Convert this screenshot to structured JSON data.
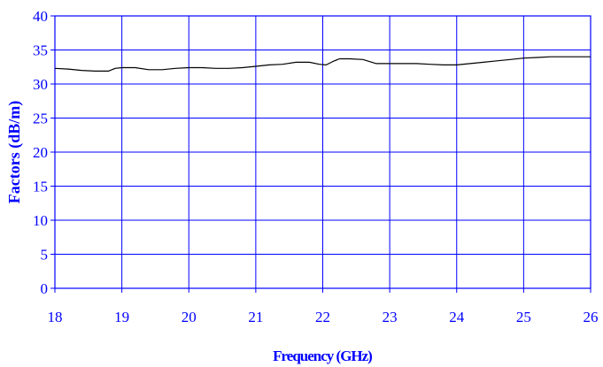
{
  "chart_data": {
    "type": "line",
    "title": "",
    "xlabel": "Frequency (GHz)",
    "ylabel": "Factors (dB/m)",
    "xlim": [
      18,
      26
    ],
    "ylim": [
      0,
      40
    ],
    "x_ticks": [
      18,
      19,
      20,
      21,
      22,
      23,
      24,
      25,
      26
    ],
    "y_ticks": [
      0,
      5,
      10,
      15,
      20,
      25,
      30,
      35,
      40
    ],
    "grid": true,
    "legend": "none",
    "colors": {
      "axis": "#0000ff",
      "grid": "#0000ff",
      "series": "#000000"
    },
    "series": [
      {
        "x": [
          18.0,
          18.2,
          18.4,
          18.6,
          18.8,
          18.9,
          19.0,
          19.2,
          19.4,
          19.6,
          19.8,
          20.0,
          20.2,
          20.4,
          20.6,
          20.8,
          21.0,
          21.2,
          21.4,
          21.6,
          21.8,
          21.95,
          22.05,
          22.15,
          22.25,
          22.4,
          22.6,
          22.8,
          23.0,
          23.2,
          23.4,
          23.6,
          23.8,
          24.0,
          24.2,
          24.4,
          24.6,
          24.8,
          25.0,
          25.2,
          25.4,
          25.6,
          25.8,
          26.0
        ],
        "y": [
          32.3,
          32.2,
          32.0,
          31.9,
          31.9,
          32.3,
          32.4,
          32.4,
          32.1,
          32.1,
          32.3,
          32.4,
          32.4,
          32.3,
          32.3,
          32.4,
          32.6,
          32.8,
          32.9,
          33.2,
          33.2,
          32.9,
          32.8,
          33.3,
          33.7,
          33.7,
          33.6,
          33.0,
          33.0,
          33.0,
          33.0,
          32.9,
          32.8,
          32.8,
          33.0,
          33.2,
          33.4,
          33.6,
          33.8,
          33.9,
          34.0,
          34.0,
          34.0,
          34.0
        ]
      }
    ]
  }
}
